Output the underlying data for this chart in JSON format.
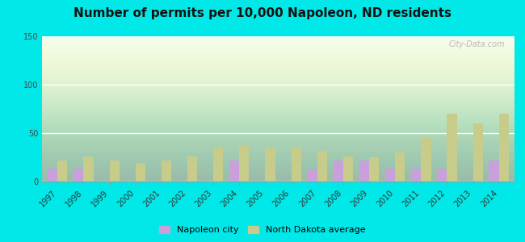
{
  "title": "Number of permits per 10,000 Napoleon, ND residents",
  "years": [
    1997,
    1998,
    1999,
    2000,
    2001,
    2002,
    2003,
    2004,
    2005,
    2006,
    2007,
    2008,
    2009,
    2010,
    2011,
    2012,
    2013,
    2014
  ],
  "napoleon_city": [
    13,
    13,
    0,
    0,
    0,
    0,
    0,
    22,
    0,
    0,
    12,
    22,
    22,
    13,
    13,
    13,
    0,
    22
  ],
  "nd_average": [
    22,
    26,
    22,
    19,
    22,
    26,
    35,
    37,
    35,
    35,
    32,
    26,
    25,
    30,
    45,
    70,
    60,
    70
  ],
  "napoleon_color": "#c9a0dc",
  "nd_color": "#c8cc8a",
  "outer_bg": "#00e8e8",
  "ylim": [
    0,
    150
  ],
  "yticks": [
    0,
    50,
    100,
    150
  ],
  "bar_width": 0.38,
  "title_fontsize": 11,
  "tick_fontsize": 7,
  "legend_fontsize": 8,
  "watermark": "City-Data.com"
}
